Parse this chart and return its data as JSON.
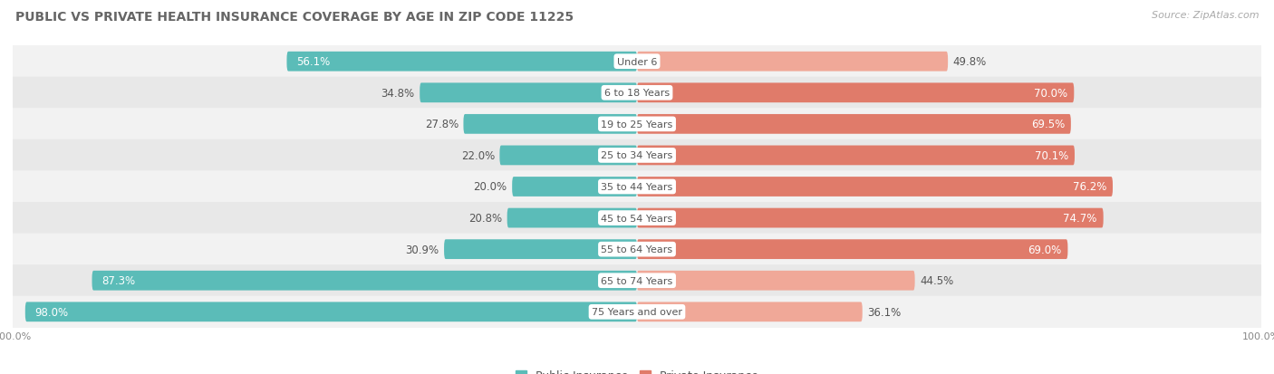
{
  "title": "PUBLIC VS PRIVATE HEALTH INSURANCE COVERAGE BY AGE IN ZIP CODE 11225",
  "source": "Source: ZipAtlas.com",
  "categories": [
    "Under 6",
    "6 to 18 Years",
    "19 to 25 Years",
    "25 to 34 Years",
    "35 to 44 Years",
    "45 to 54 Years",
    "55 to 64 Years",
    "65 to 74 Years",
    "75 Years and over"
  ],
  "public_values": [
    56.1,
    34.8,
    27.8,
    22.0,
    20.0,
    20.8,
    30.9,
    87.3,
    98.0
  ],
  "private_values": [
    49.8,
    70.0,
    69.5,
    70.1,
    76.2,
    74.7,
    69.0,
    44.5,
    36.1
  ],
  "public_color": "#5bbcb8",
  "private_color": "#e07b6a",
  "private_color_light": "#f0a898",
  "row_bg_even": "#f2f2f2",
  "row_bg_odd": "#e8e8e8",
  "title_color": "#666666",
  "source_color": "#aaaaaa",
  "center_label_color": "#555555",
  "value_color_dark": "#555555",
  "value_color_white": "#ffffff",
  "x_axis_max": 100.0,
  "legend_public": "Public Insurance",
  "legend_private": "Private Insurance",
  "title_fontsize": 10,
  "label_fontsize": 8,
  "value_fontsize": 8.5,
  "source_fontsize": 8,
  "axis_fontsize": 8
}
